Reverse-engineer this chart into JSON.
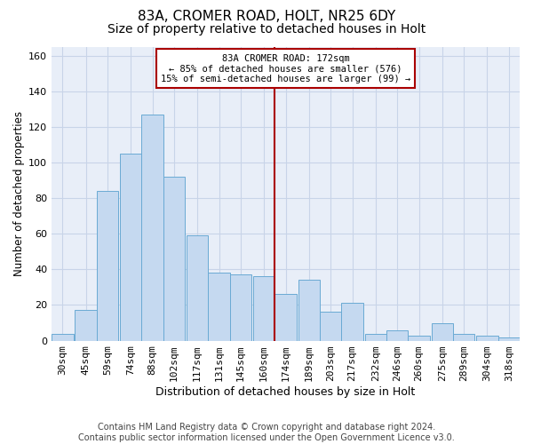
{
  "title1": "83A, CROMER ROAD, HOLT, NR25 6DY",
  "title2": "Size of property relative to detached houses in Holt",
  "xlabel": "Distribution of detached houses by size in Holt",
  "ylabel": "Number of detached properties",
  "footnote": "Contains HM Land Registry data © Crown copyright and database right 2024.\nContains public sector information licensed under the Open Government Licence v3.0.",
  "bin_labels": [
    "30sqm",
    "45sqm",
    "59sqm",
    "74sqm",
    "88sqm",
    "102sqm",
    "117sqm",
    "131sqm",
    "145sqm",
    "160sqm",
    "174sqm",
    "189sqm",
    "203sqm",
    "217sqm",
    "232sqm",
    "246sqm",
    "260sqm",
    "275sqm",
    "289sqm",
    "304sqm",
    "318sqm"
  ],
  "bar_values": [
    4,
    17,
    84,
    105,
    127,
    92,
    59,
    38,
    37,
    36,
    26,
    34,
    16,
    21,
    4,
    6,
    3,
    10,
    4,
    3,
    2
  ],
  "bar_color": "#c5d9f0",
  "bar_edge_color": "#6aaad4",
  "vline_color": "#aa0000",
  "annotation_line1": "83A CROMER ROAD: 172sqm",
  "annotation_line2": "← 85% of detached houses are smaller (576)",
  "annotation_line3": "15% of semi-detached houses are larger (99) →",
  "annotation_box_color": "#aa0000",
  "ylim": [
    0,
    165
  ],
  "yticks": [
    0,
    20,
    40,
    60,
    80,
    100,
    120,
    140,
    160
  ],
  "grid_color": "#c8d4e8",
  "bg_color": "#e8eef8",
  "title1_fontsize": 11,
  "title2_fontsize": 10,
  "xlabel_fontsize": 9,
  "ylabel_fontsize": 8.5,
  "tick_fontsize": 8,
  "footnote_fontsize": 7,
  "bin_width": 14,
  "vline_bin_index": 10
}
